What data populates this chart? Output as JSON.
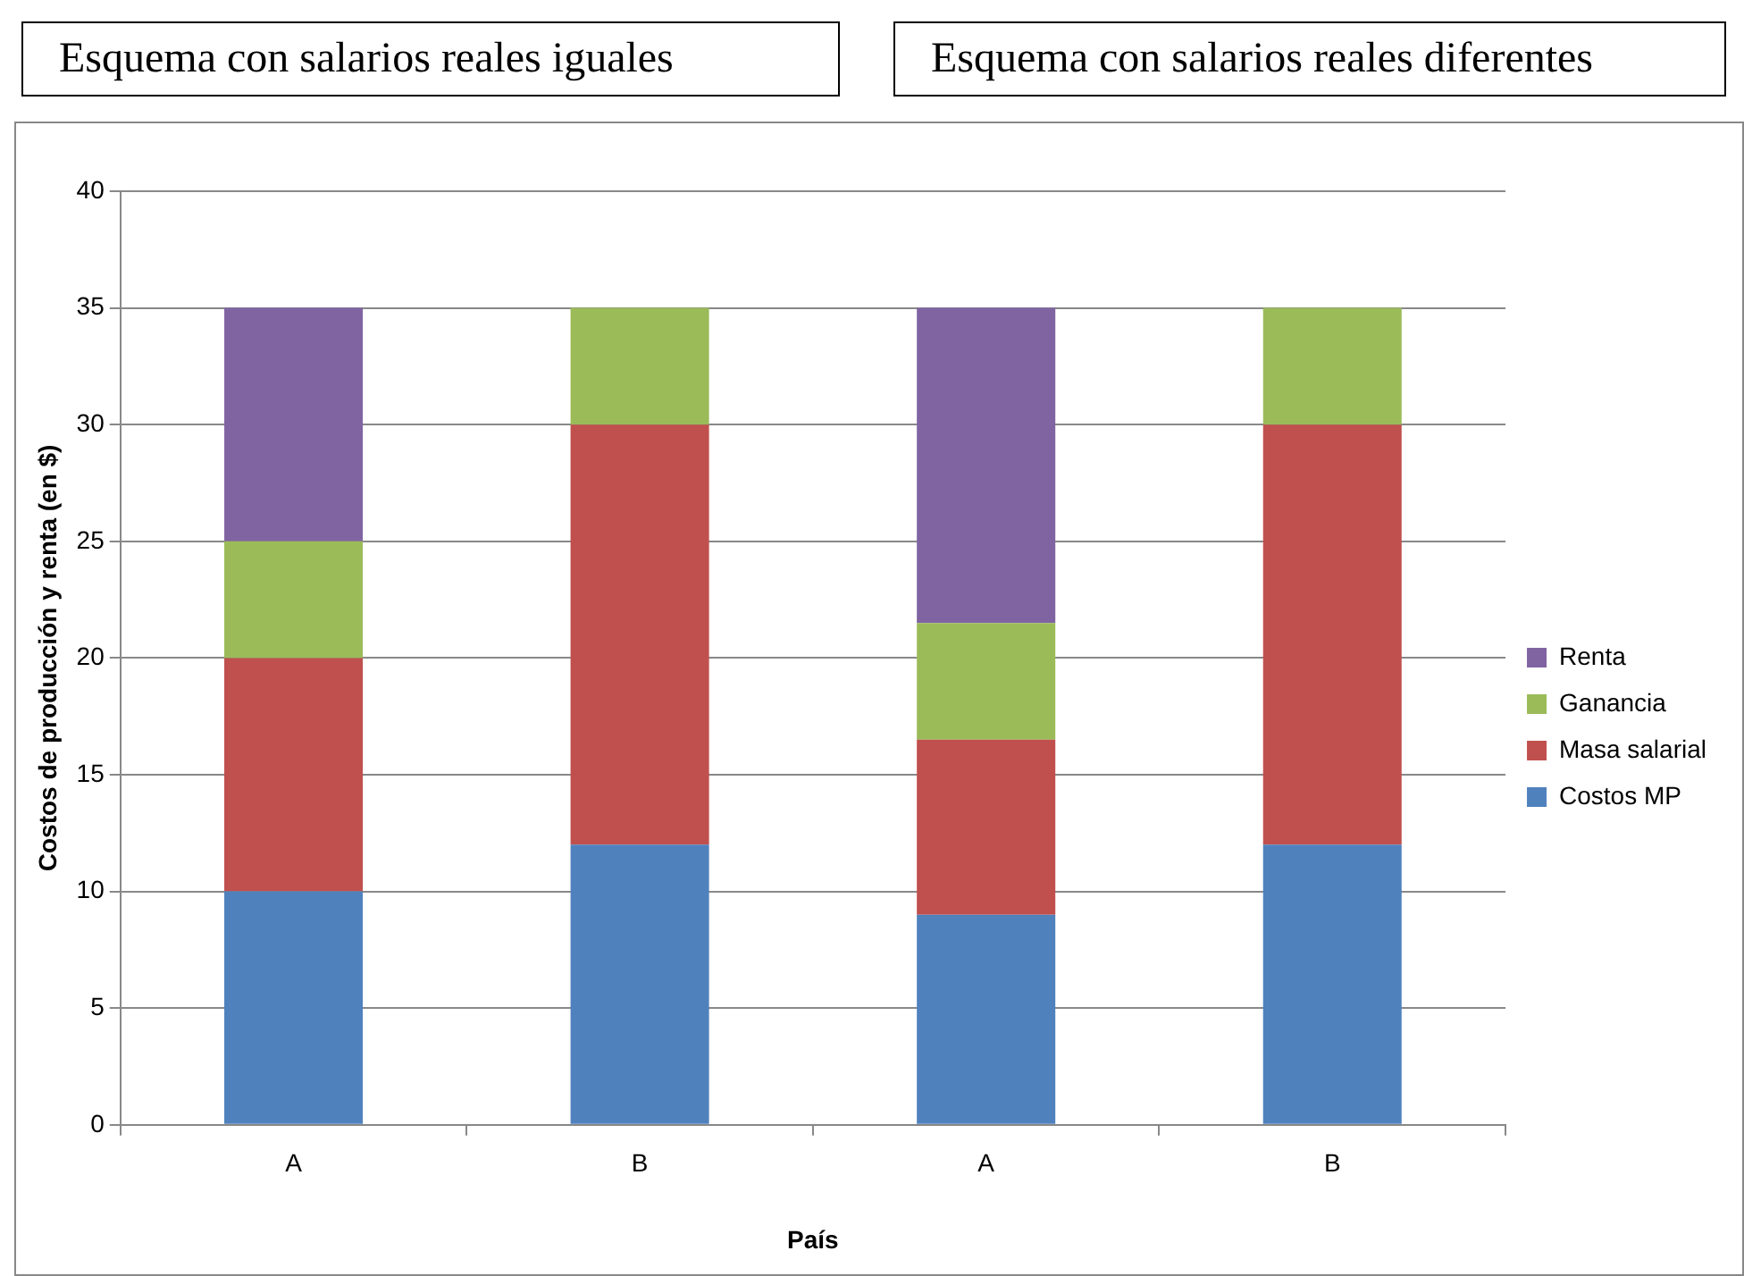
{
  "chart_data": {
    "type": "bar",
    "stacked": true,
    "annotations": [
      "Esquema con salarios reales iguales",
      "Esquema con salarios reales diferentes"
    ],
    "xlabel": "País",
    "ylabel": "Costos de producción y renta (en $)",
    "categories": [
      "A",
      "B",
      "A",
      "B"
    ],
    "series": [
      {
        "name": "Costos MP",
        "color": "#4f81bd",
        "values": [
          10,
          12,
          9,
          12
        ]
      },
      {
        "name": "Masa salarial",
        "color": "#c0504d",
        "values": [
          10,
          18,
          7.5,
          18
        ]
      },
      {
        "name": "Ganancia",
        "color": "#9bbb59",
        "values": [
          5,
          5,
          5,
          5
        ]
      },
      {
        "name": "Renta",
        "color": "#8064a2",
        "values": [
          10,
          null,
          13.5,
          null
        ]
      }
    ],
    "ylim": [
      0,
      40
    ],
    "yticks": [
      0,
      5,
      10,
      15,
      20,
      25,
      30,
      35,
      40
    ],
    "grid": "y",
    "legend": "right"
  }
}
